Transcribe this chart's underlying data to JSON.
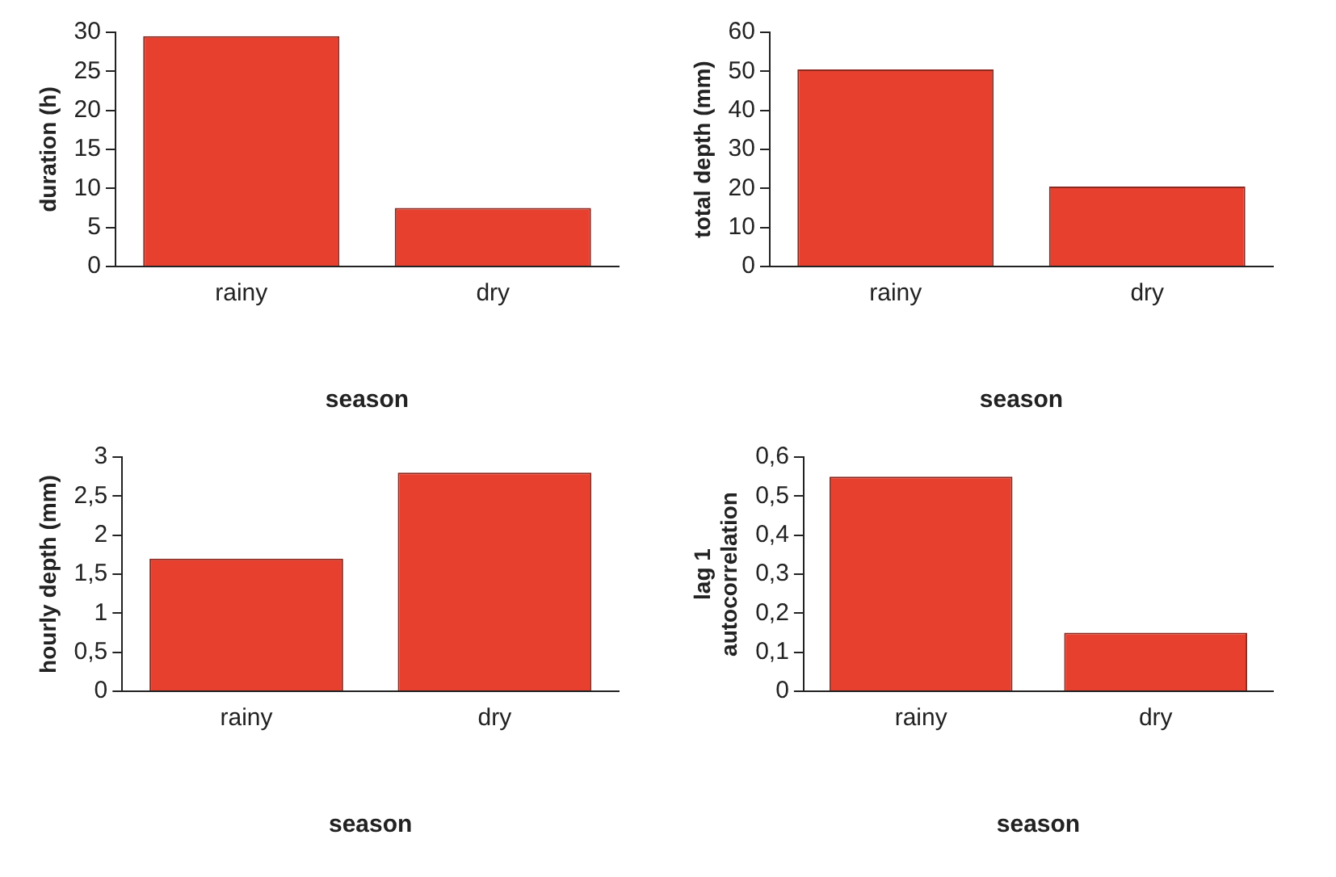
{
  "chart_data": [
    {
      "type": "bar",
      "categories": [
        "rainy",
        "dry"
      ],
      "values": [
        29.5,
        7.5
      ],
      "color": "#e8402f",
      "xlabel": "season",
      "ylabel": "duration (h)",
      "ylim": [
        0,
        30
      ],
      "yticks": [
        0,
        5,
        10,
        15,
        20,
        25,
        30
      ],
      "grid": false,
      "legend": false
    },
    {
      "type": "bar",
      "categories": [
        "rainy",
        "dry"
      ],
      "values": [
        50.5,
        20.5
      ],
      "color": "#e8402f",
      "xlabel": "season",
      "ylabel": "total depth (mm)",
      "ylim": [
        0,
        60
      ],
      "yticks": [
        0,
        10,
        20,
        30,
        40,
        50,
        60
      ],
      "grid": false,
      "legend": false
    },
    {
      "type": "bar",
      "categories": [
        "rainy",
        "dry"
      ],
      "values": [
        1.7,
        2.8
      ],
      "color": "#e8402f",
      "xlabel": "season",
      "ylabel": "hourly depth (mm)",
      "ylim": [
        0,
        3
      ],
      "yticks": [
        0,
        {
          "value": 0.5,
          "label": "0,5"
        },
        1,
        {
          "value": 1.5,
          "label": "1,5"
        },
        2,
        {
          "value": 2.5,
          "label": "2,5"
        },
        3
      ],
      "grid": false,
      "legend": false
    },
    {
      "type": "bar",
      "categories": [
        "rainy",
        "dry"
      ],
      "values": [
        0.55,
        0.15
      ],
      "color": "#e8402f",
      "xlabel": "season",
      "ylabel": "lag 1\nautocorrelation",
      "ylim": [
        0,
        0.6
      ],
      "yticks": [
        0,
        {
          "value": 0.1,
          "label": "0,1"
        },
        {
          "value": 0.2,
          "label": "0,2"
        },
        {
          "value": 0.3,
          "label": "0,3"
        },
        {
          "value": 0.4,
          "label": "0,4"
        },
        {
          "value": 0.5,
          "label": "0,5"
        },
        {
          "value": 0.6,
          "label": "0,6"
        }
      ],
      "grid": false,
      "legend": false
    }
  ]
}
